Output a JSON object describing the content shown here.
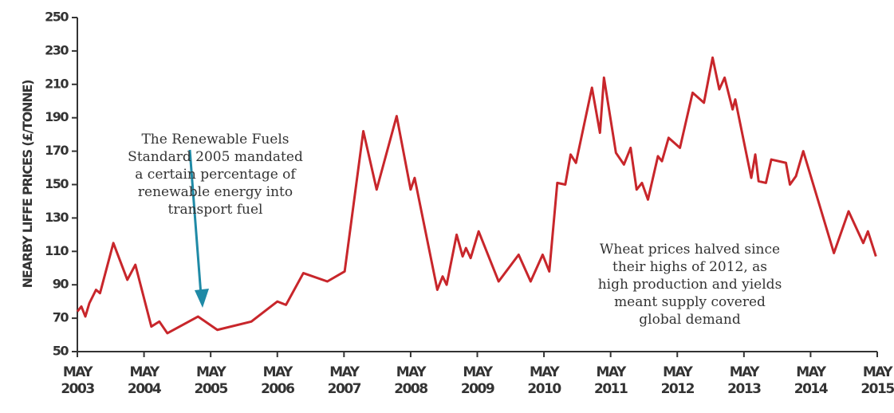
{
  "chart_data": {
    "type": "line",
    "y_label": "NEARBY LIFFE PRICES (£/TONNE)",
    "annotations": [
      {
        "lines": [
          "The Renewable Fuels",
          "Standard 2005 mandated",
          "a certain percentage of",
          "renewable energy into",
          "transport fuel"
        ]
      },
      {
        "lines": [
          "Wheat prices halved since",
          "their highs of 2012, as",
          "high production and yields",
          "meant supply covered",
          "global demand"
        ]
      }
    ],
    "xlim": [
      2003.33,
      2015.33
    ],
    "xticks": [
      {
        "value": 2003.33,
        "label": "MAY 2003"
      },
      {
        "value": 2004.33,
        "label": "MAY 2004"
      },
      {
        "value": 2005.33,
        "label": "MAY 2005"
      },
      {
        "value": 2006.33,
        "label": "MAY 2006"
      },
      {
        "value": 2007.33,
        "label": "MAY 2007"
      },
      {
        "value": 2008.33,
        "label": "MAY 2008"
      },
      {
        "value": 2009.33,
        "label": "MAY 2009"
      },
      {
        "value": 2010.33,
        "label": "MAY 2010"
      },
      {
        "value": 2011.33,
        "label": "MAY 2011"
      },
      {
        "value": 2012.33,
        "label": "MAY 2012"
      },
      {
        "value": 2013.33,
        "label": "MAY 2013"
      },
      {
        "value": 2014.33,
        "label": "MAY 2014"
      },
      {
        "value": 2015.33,
        "label": "MAY 2015"
      }
    ],
    "ylim": [
      50,
      250
    ],
    "yticks": [
      50,
      70,
      90,
      110,
      130,
      150,
      170,
      190,
      210,
      230,
      250
    ],
    "grid": false,
    "x": [
      2003.33,
      2003.39,
      2003.45,
      2003.51,
      2003.61,
      2003.67,
      2003.87,
      2004.08,
      2004.2,
      2004.44,
      2004.56,
      2004.68,
      2005.14,
      2005.43,
      2005.94,
      2006.33,
      2006.46,
      2006.72,
      2007.08,
      2007.34,
      2007.62,
      2007.82,
      2008.12,
      2008.33,
      2008.39,
      2008.73,
      2008.81,
      2008.87,
      2009.02,
      2009.11,
      2009.16,
      2009.23,
      2009.35,
      2009.65,
      2009.95,
      2010.13,
      2010.31,
      2010.41,
      2010.53,
      2010.65,
      2010.73,
      2010.81,
      2011.05,
      2011.17,
      2011.23,
      2011.41,
      2011.53,
      2011.63,
      2011.72,
      2011.8,
      2011.89,
      2012.04,
      2012.1,
      2012.2,
      2012.37,
      2012.56,
      2012.73,
      2012.86,
      2012.96,
      2013.04,
      2013.16,
      2013.2,
      2013.44,
      2013.5,
      2013.55,
      2013.66,
      2013.74,
      2013.96,
      2014.02,
      2014.11,
      2014.22,
      2014.68,
      2014.9,
      2015.12,
      2015.19,
      2015.31
    ],
    "series": [
      {
        "color": "#c8262b",
        "values": [
          74,
          77,
          71,
          79,
          87,
          85,
          115,
          93,
          102,
          65,
          68,
          61,
          71,
          63,
          68,
          80,
          78,
          97,
          92,
          98,
          182,
          147,
          191,
          147,
          154,
          87,
          95,
          90,
          120,
          107,
          112,
          106,
          122,
          92,
          108,
          92,
          108,
          98,
          151,
          150,
          168,
          163,
          208,
          181,
          214,
          169,
          162,
          172,
          147,
          151,
          141,
          167,
          164,
          178,
          172,
          205,
          199,
          226,
          207,
          214,
          195,
          201,
          154,
          168,
          152,
          151,
          165,
          163,
          150,
          155,
          170,
          109,
          134,
          115,
          122,
          107
        ]
      }
    ]
  }
}
